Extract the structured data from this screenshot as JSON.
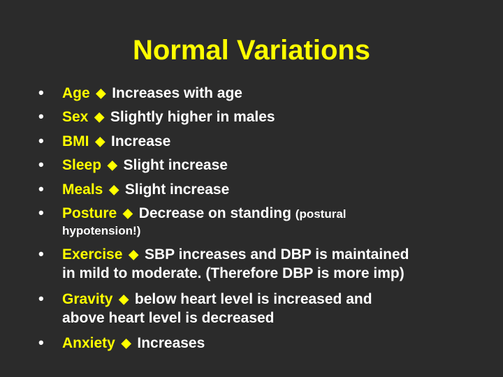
{
  "slide": {
    "title": "Normal Variations",
    "bullet_glyph": "•",
    "arrow_icon": "yellow-diamond-icon",
    "items": [
      {
        "term": "Age",
        "text": " Increases with age"
      },
      {
        "term": "Sex",
        "text": " Slightly higher in males"
      },
      {
        "term": "BMI",
        "text": " Increase"
      },
      {
        "term": "Sleep",
        "text": " Slight increase"
      },
      {
        "term": "Meals",
        "text": " Slight increase"
      },
      {
        "term": "Posture",
        "text": " Decrease on standing ",
        "small": "(postural",
        "cont": "hypotension!)"
      },
      {
        "term": "Exercise",
        "text": " SBP increases and DBP is maintained",
        "cont": "in mild to moderate. (Therefore DBP is more imp)"
      },
      {
        "term": "Gravity",
        "text": " below heart level is increased and",
        "cont": "above heart level is decreased"
      },
      {
        "term": "Anxiety",
        "text": " Increases"
      }
    ],
    "colors": {
      "background": "#2b2b2b",
      "accent": "#ffff00",
      "text": "#ffffff"
    }
  }
}
